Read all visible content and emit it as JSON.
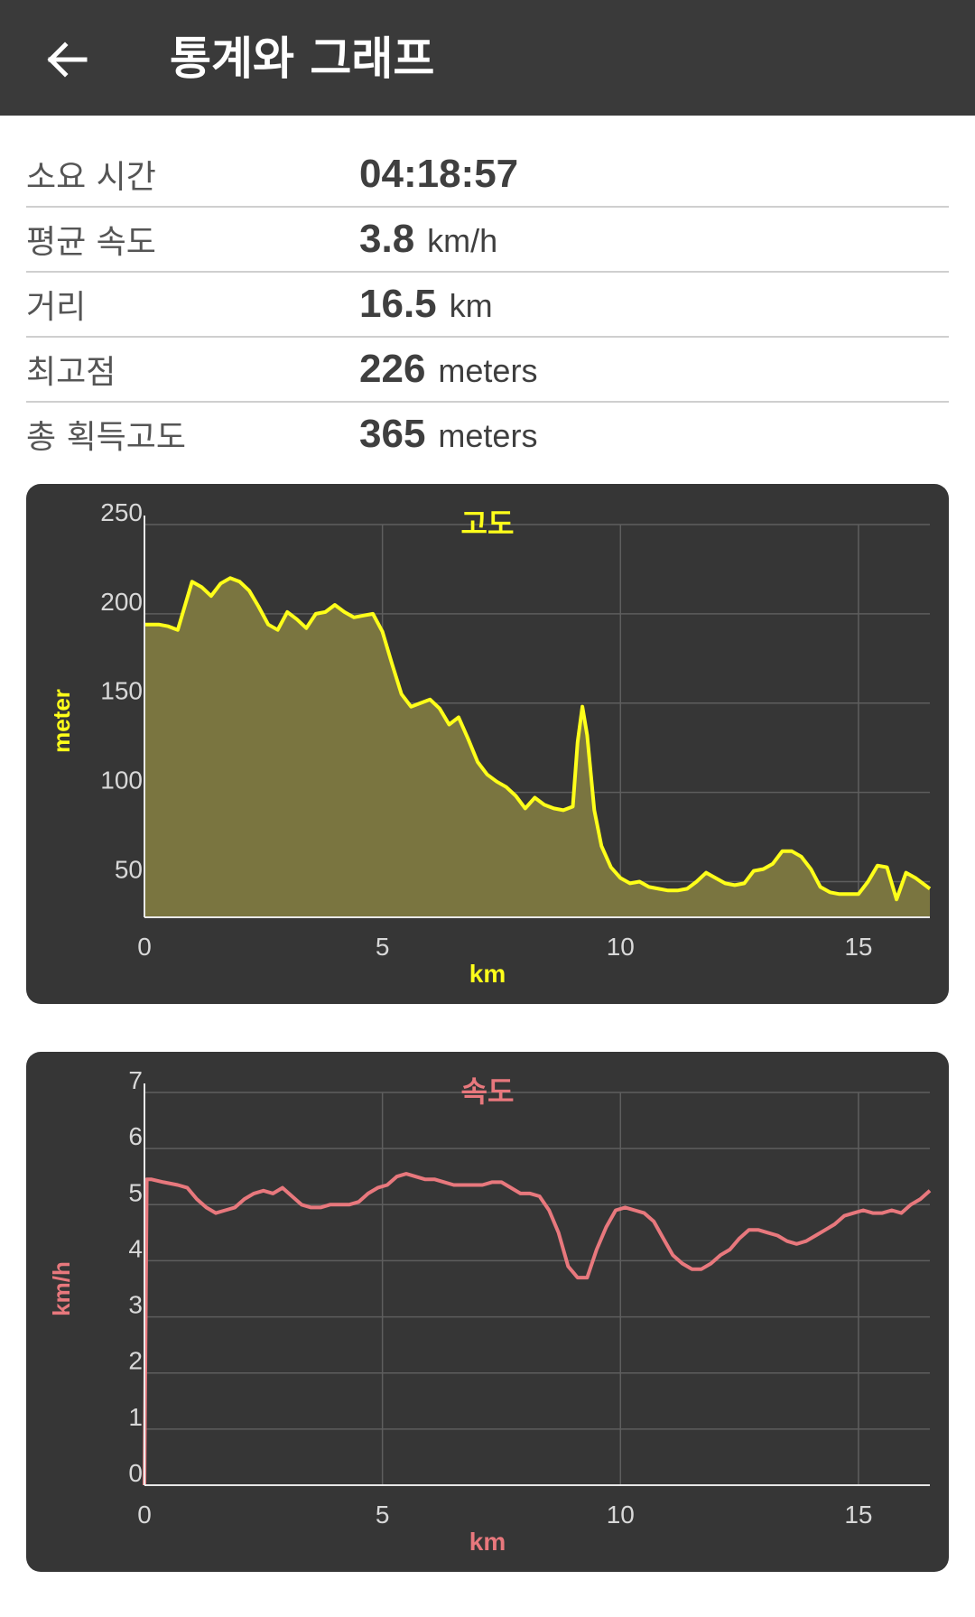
{
  "appbar": {
    "title": "통계와 그래프",
    "back_icon": "arrow-left-icon"
  },
  "stats": [
    {
      "label": "소요 시간",
      "value": "04:18:57",
      "unit": ""
    },
    {
      "label": "평균 속도",
      "value": "3.8",
      "unit": "km/h"
    },
    {
      "label": "거리",
      "value": "16.5",
      "unit": "km"
    },
    {
      "label": "최고점",
      "value": "226",
      "unit": "meters"
    },
    {
      "label": "총 획득고도",
      "value": "365",
      "unit": "meters"
    }
  ],
  "colors": {
    "elevation": "#ffff1a",
    "elevation_fill": "#7a7540",
    "speed": "#e8787d",
    "card_bg": "#363636",
    "grid": "#5e5e5e",
    "tick": "#d8d8d8"
  },
  "chart_data": [
    {
      "type": "area",
      "title": "고도",
      "xlabel": "km",
      "ylabel": "meter",
      "xlim": [
        0,
        16.5
      ],
      "ylim": [
        30,
        250
      ],
      "xticks": [
        "0",
        "5",
        "10",
        "15"
      ],
      "xtick_values": [
        0,
        5,
        10,
        15
      ],
      "yticks": [
        "50",
        "100",
        "150",
        "200",
        "250"
      ],
      "ytick_values": [
        50,
        100,
        150,
        200,
        250
      ],
      "grid": true,
      "series": [
        {
          "x": [
            0,
            0.3,
            0.5,
            0.7,
            1.0,
            1.2,
            1.4,
            1.6,
            1.8,
            2.0,
            2.2,
            2.4,
            2.6,
            2.8,
            3.0,
            3.2,
            3.4,
            3.6,
            3.8,
            4.0,
            4.2,
            4.4,
            4.6,
            4.8,
            5.0,
            5.2,
            5.4,
            5.6,
            5.8,
            6.0,
            6.2,
            6.4,
            6.6,
            6.8,
            7.0,
            7.2,
            7.4,
            7.6,
            7.8,
            8.0,
            8.2,
            8.4,
            8.6,
            8.8,
            9.0,
            9.1,
            9.2,
            9.3,
            9.45,
            9.6,
            9.8,
            10.0,
            10.2,
            10.4,
            10.6,
            10.8,
            11.0,
            11.2,
            11.4,
            11.6,
            11.8,
            12.0,
            12.2,
            12.4,
            12.6,
            12.8,
            13.0,
            13.2,
            13.4,
            13.6,
            13.8,
            14.0,
            14.2,
            14.4,
            14.6,
            14.8,
            15.0,
            15.2,
            15.4,
            15.6,
            15.8,
            16.0,
            16.2,
            16.5
          ],
          "y": [
            194,
            194,
            193,
            191,
            218,
            215,
            210,
            217,
            220,
            218,
            213,
            204,
            194,
            191,
            201,
            197,
            192,
            200,
            201,
            205,
            201,
            198,
            199,
            200,
            190,
            172,
            155,
            148,
            150,
            152,
            147,
            138,
            142,
            130,
            117,
            110,
            106,
            103,
            98,
            91,
            97,
            93,
            91,
            90,
            92,
            128,
            148,
            132,
            90,
            70,
            58,
            52,
            49,
            50,
            47,
            46,
            45,
            45,
            46,
            50,
            55,
            52,
            49,
            48,
            49,
            56,
            57,
            60,
            67,
            67,
            64,
            57,
            47,
            44,
            43,
            43,
            43,
            50,
            59,
            58,
            40,
            55,
            52,
            46
          ]
        }
      ]
    },
    {
      "type": "line",
      "title": "속도",
      "xlabel": "km",
      "ylabel": "km/h",
      "xlim": [
        0,
        16.5
      ],
      "ylim": [
        0,
        7
      ],
      "xticks": [
        "0",
        "5",
        "10",
        "15"
      ],
      "xtick_values": [
        0,
        5,
        10,
        15
      ],
      "yticks": [
        "0",
        "1",
        "2",
        "3",
        "4",
        "5",
        "6",
        "7"
      ],
      "ytick_values": [
        0,
        1,
        2,
        3,
        4,
        5,
        6,
        7
      ],
      "grid": true,
      "series": [
        {
          "x": [
            0,
            0.05,
            0.15,
            0.4,
            0.7,
            0.9,
            1.1,
            1.3,
            1.5,
            1.7,
            1.9,
            2.1,
            2.3,
            2.5,
            2.7,
            2.9,
            3.1,
            3.3,
            3.5,
            3.7,
            3.9,
            4.1,
            4.3,
            4.5,
            4.7,
            4.9,
            5.1,
            5.3,
            5.5,
            5.7,
            5.9,
            6.1,
            6.3,
            6.5,
            6.7,
            6.9,
            7.1,
            7.3,
            7.5,
            7.7,
            7.9,
            8.1,
            8.3,
            8.5,
            8.7,
            8.9,
            9.1,
            9.3,
            9.5,
            9.7,
            9.9,
            10.1,
            10.3,
            10.5,
            10.7,
            10.9,
            11.1,
            11.3,
            11.5,
            11.7,
            11.9,
            12.1,
            12.3,
            12.5,
            12.7,
            12.9,
            13.1,
            13.3,
            13.5,
            13.7,
            13.9,
            14.1,
            14.3,
            14.5,
            14.7,
            14.9,
            15.1,
            15.3,
            15.5,
            15.7,
            15.9,
            16.1,
            16.3,
            16.5
          ],
          "y": [
            0,
            5.45,
            5.45,
            5.4,
            5.35,
            5.3,
            5.1,
            4.95,
            4.85,
            4.9,
            4.95,
            5.1,
            5.2,
            5.25,
            5.2,
            5.3,
            5.15,
            5.0,
            4.95,
            4.95,
            5.0,
            5.0,
            5.0,
            5.05,
            5.2,
            5.3,
            5.35,
            5.5,
            5.55,
            5.5,
            5.45,
            5.45,
            5.4,
            5.35,
            5.35,
            5.35,
            5.35,
            5.4,
            5.4,
            5.3,
            5.2,
            5.2,
            5.15,
            4.9,
            4.5,
            3.9,
            3.7,
            3.7,
            4.2,
            4.6,
            4.9,
            4.95,
            4.9,
            4.85,
            4.7,
            4.4,
            4.1,
            3.95,
            3.85,
            3.85,
            3.95,
            4.1,
            4.2,
            4.4,
            4.55,
            4.55,
            4.5,
            4.45,
            4.35,
            4.3,
            4.35,
            4.45,
            4.55,
            4.65,
            4.8,
            4.85,
            4.9,
            4.85,
            4.85,
            4.9,
            4.85,
            5.0,
            5.1,
            5.25
          ]
        }
      ]
    }
  ]
}
